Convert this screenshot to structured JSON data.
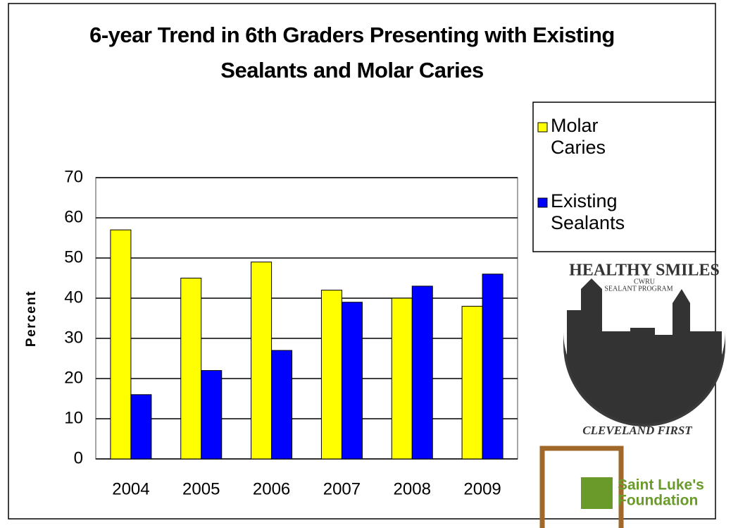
{
  "chart_data": {
    "type": "bar",
    "title": "6-year Trend in 6th Graders Presenting with Existing Sealants and Molar Caries",
    "categories": [
      "2004",
      "2005",
      "2006",
      "2007",
      "2008",
      "2009"
    ],
    "series": [
      {
        "name": "Molar Caries",
        "color": "#ffff00",
        "values": [
          57,
          45,
          49,
          42,
          40,
          38
        ]
      },
      {
        "name": "Existing Sealants",
        "color": "#0000ff",
        "values": [
          16,
          22,
          27,
          39,
          43,
          46
        ]
      }
    ],
    "ylabel": "Percent",
    "ylim": [
      0,
      70
    ],
    "yticks": [
      0,
      10,
      20,
      30,
      40,
      50,
      60,
      70
    ],
    "grid": true,
    "legend": "right"
  },
  "logos": {
    "healthy_smiles": {
      "top": "HEALTHY SMILES",
      "line1": "CWRU",
      "line2": "SEALANT PROGRAM",
      "bottom": "CLEVELAND FIRST"
    },
    "saint_lukes": {
      "line1": "Saint Luke's",
      "line2": "Foundation"
    }
  }
}
